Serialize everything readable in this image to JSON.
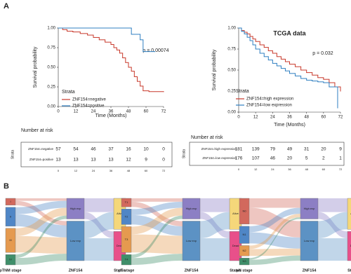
{
  "panel_labels": [
    "A",
    "B"
  ],
  "chart_data": [
    {
      "type": "km",
      "annotation": "p = 0.00074",
      "x_label": "Time (Months)",
      "y_label": "Survival probability",
      "legend_title": "Strata",
      "xlim": [
        0,
        72
      ],
      "ylim": [
        0,
        1
      ],
      "xticks": [
        0,
        12,
        24,
        36,
        48,
        60,
        72
      ],
      "yticks": [
        {
          "value": 0,
          "label": "0.00"
        },
        {
          "value": 0.25,
          "label": "0.25"
        },
        {
          "value": 0.5,
          "label": "0.50"
        },
        {
          "value": 0.75,
          "label": "0.75"
        },
        {
          "value": 1,
          "label": "1.00"
        }
      ],
      "series": [
        {
          "name": "ZNF154=negative",
          "color": "#c8392b",
          "x": [
            0,
            3,
            6,
            10,
            15,
            20,
            24,
            28,
            32,
            36,
            38,
            40,
            42,
            44,
            46,
            48,
            50,
            52,
            54,
            56,
            58,
            62,
            72
          ],
          "values": [
            1,
            0.98,
            0.96,
            0.95,
            0.93,
            0.91,
            0.88,
            0.85,
            0.82,
            0.79,
            0.75,
            0.72,
            0.68,
            0.62,
            0.56,
            0.5,
            0.45,
            0.38,
            0.32,
            0.26,
            0.2,
            0.19,
            0.19
          ]
        },
        {
          "name": "ZNF154=positive",
          "color": "#2f7fc1",
          "x": [
            0,
            50,
            56,
            58,
            66
          ],
          "values": [
            1,
            0.92,
            0.85,
            0.7,
            0.7
          ]
        }
      ],
      "risk_table": {
        "title": "Number at risk",
        "y_label": "Strata",
        "counts": [
          [
            57,
            54,
            46,
            37,
            16,
            10,
            0
          ],
          [
            13,
            13,
            13,
            13,
            12,
            9,
            0
          ]
        ]
      }
    },
    {
      "type": "km",
      "title": "TCGA data",
      "annotation": "p = 0.032",
      "x_label": "Time (Months)",
      "y_label": "Survival probability",
      "legend_title": "Strata",
      "xlim": [
        0,
        72
      ],
      "ylim": [
        0,
        1
      ],
      "xticks": [
        0,
        12,
        24,
        36,
        48,
        60,
        72
      ],
      "yticks": [
        {
          "value": 0,
          "label": "0.00"
        },
        {
          "value": 0.25,
          "label": "0.25"
        },
        {
          "value": 0.5,
          "label": "0.50"
        },
        {
          "value": 0.75,
          "label": "0.75"
        },
        {
          "value": 1,
          "label": "1.00"
        }
      ],
      "series": [
        {
          "name": "ZNF154=high expression",
          "color": "#c8392b",
          "x": [
            0,
            2,
            4,
            6,
            8,
            10,
            12,
            15,
            18,
            21,
            24,
            27,
            30,
            33,
            36,
            40,
            44,
            48,
            52,
            56,
            60,
            64,
            68,
            72
          ],
          "values": [
            1,
            0.97,
            0.95,
            0.93,
            0.9,
            0.87,
            0.84,
            0.8,
            0.77,
            0.73,
            0.7,
            0.66,
            0.63,
            0.6,
            0.57,
            0.54,
            0.5,
            0.47,
            0.44,
            0.41,
            0.39,
            0.35,
            0.3,
            0.25
          ]
        },
        {
          "name": "ZNF154=low  expression",
          "color": "#2f7fc1",
          "x": [
            0,
            2,
            4,
            6,
            8,
            10,
            12,
            15,
            18,
            21,
            24,
            27,
            30,
            33,
            36,
            40,
            44,
            48,
            52,
            56,
            60,
            64,
            68,
            70
          ],
          "values": [
            1,
            0.96,
            0.93,
            0.89,
            0.85,
            0.8,
            0.75,
            0.7,
            0.66,
            0.62,
            0.58,
            0.55,
            0.52,
            0.49,
            0.46,
            0.43,
            0.4,
            0.38,
            0.37,
            0.36,
            0.35,
            0.3,
            0.3,
            0.05
          ]
        }
      ],
      "risk_table": {
        "title": "Number at risk",
        "y_label": "Strata",
        "counts": [
          [
            181,
            139,
            79,
            49,
            31,
            20,
            9
          ],
          [
            176,
            107,
            46,
            20,
            5,
            2,
            1
          ]
        ]
      }
    },
    {
      "type": "sankey",
      "columns": [
        {
          "label": "pTNM stage",
          "nodes": [
            {
              "name": "I",
              "value": 8,
              "color": "#d2695d"
            },
            {
              "name": "II",
              "value": 22,
              "color": "#4f86c6"
            },
            {
              "name": "III",
              "value": 28,
              "color": "#e59a4f"
            },
            {
              "name": "IV",
              "value": 12,
              "color": "#3f8f6a"
            }
          ]
        },
        {
          "label": "ZNF154",
          "nodes": [
            {
              "name": "High exp",
              "value": 24,
              "color": "#8c7fc4"
            },
            {
              "name": "Low exp",
              "value": 46,
              "color": "#5c92c4"
            }
          ]
        },
        {
          "label": "Status",
          "nodes": [
            {
              "name": "Alive",
              "value": 36,
              "color": "#f5d77a"
            },
            {
              "name": "Dead",
              "value": 34,
              "color": "#e8508a"
            }
          ]
        }
      ],
      "links": [
        {
          "source": "I",
          "target": "High exp",
          "value": 3
        },
        {
          "source": "I",
          "target": "Low exp",
          "value": 5
        },
        {
          "source": "II",
          "target": "High exp",
          "value": 8
        },
        {
          "source": "II",
          "target": "Low exp",
          "value": 14
        },
        {
          "source": "III",
          "target": "High exp",
          "value": 9
        },
        {
          "source": "III",
          "target": "Low exp",
          "value": 19
        },
        {
          "source": "IV",
          "target": "High exp",
          "value": 4
        },
        {
          "source": "IV",
          "target": "Low exp",
          "value": 8
        },
        {
          "source": "High exp",
          "target": "Alive",
          "value": 16
        },
        {
          "source": "High exp",
          "target": "Dead",
          "value": 8
        },
        {
          "source": "Low exp",
          "target": "Alive",
          "value": 20
        },
        {
          "source": "Low exp",
          "target": "Dead",
          "value": 26
        }
      ]
    },
    {
      "type": "sankey",
      "columns": [
        {
          "label": "pT stage",
          "nodes": [
            {
              "name": "T1",
              "value": 10,
              "color": "#d2695d"
            },
            {
              "name": "T2",
              "value": 18,
              "color": "#4f86c6"
            },
            {
              "name": "T3",
              "value": 30,
              "color": "#e59a4f"
            },
            {
              "name": "T4",
              "value": 12,
              "color": "#3f8f6a"
            }
          ]
        },
        {
          "label": "ZNF154",
          "nodes": [
            {
              "name": "High exp",
              "value": 24,
              "color": "#8c7fc4"
            },
            {
              "name": "Low exp",
              "value": 46,
              "color": "#5c92c4"
            }
          ]
        },
        {
          "label": "Status",
          "nodes": [
            {
              "name": "Alive",
              "value": 36,
              "color": "#f5d77a"
            },
            {
              "name": "Dead",
              "value": 34,
              "color": "#e8508a"
            }
          ]
        }
      ],
      "links": [
        {
          "source": "T1",
          "target": "High exp",
          "value": 4
        },
        {
          "source": "T1",
          "target": "Low exp",
          "value": 6
        },
        {
          "source": "T2",
          "target": "High exp",
          "value": 7
        },
        {
          "source": "T2",
          "target": "Low exp",
          "value": 11
        },
        {
          "source": "T3",
          "target": "High exp",
          "value": 9
        },
        {
          "source": "T3",
          "target": "Low exp",
          "value": 21
        },
        {
          "source": "T4",
          "target": "High exp",
          "value": 4
        },
        {
          "source": "T4",
          "target": "Low exp",
          "value": 8
        },
        {
          "source": "High exp",
          "target": "Alive",
          "value": 16
        },
        {
          "source": "High exp",
          "target": "Dead",
          "value": 8
        },
        {
          "source": "Low exp",
          "target": "Alive",
          "value": 20
        },
        {
          "source": "Low exp",
          "target": "Dead",
          "value": 26
        }
      ]
    },
    {
      "type": "sankey",
      "columns": [
        {
          "label": "pN stage",
          "nodes": [
            {
              "name": "N0",
              "value": 30,
              "color": "#d2695d"
            },
            {
              "name": "N1",
              "value": 20,
              "color": "#4f86c6"
            },
            {
              "name": "N2",
              "value": 12,
              "color": "#e59a4f"
            },
            {
              "name": "N3",
              "value": 8,
              "color": "#3f8f6a"
            }
          ]
        },
        {
          "label": "ZNF154",
          "nodes": [
            {
              "name": "High exp",
              "value": 24,
              "color": "#8c7fc4"
            },
            {
              "name": "Low exp",
              "value": 46,
              "color": "#5c92c4"
            }
          ]
        },
        {
          "label": "Status",
          "nodes": [
            {
              "name": "Alive",
              "value": 36,
              "color": "#f5d77a"
            },
            {
              "name": "Dead",
              "value": 34,
              "color": "#e8508a"
            }
          ]
        }
      ],
      "links": [
        {
          "source": "N0",
          "target": "High exp",
          "value": 11
        },
        {
          "source": "N0",
          "target": "Low exp",
          "value": 19
        },
        {
          "source": "N1",
          "target": "High exp",
          "value": 7
        },
        {
          "source": "N1",
          "target": "Low exp",
          "value": 13
        },
        {
          "source": "N2",
          "target": "High exp",
          "value": 4
        },
        {
          "source": "N2",
          "target": "Low exp",
          "value": 8
        },
        {
          "source": "N3",
          "target": "High exp",
          "value": 2
        },
        {
          "source": "N3",
          "target": "Low exp",
          "value": 6
        },
        {
          "source": "High exp",
          "target": "Alive",
          "value": 16
        },
        {
          "source": "High exp",
          "target": "Dead",
          "value": 8
        },
        {
          "source": "Low exp",
          "target": "Alive",
          "value": 20
        },
        {
          "source": "Low exp",
          "target": "Dead",
          "value": 26
        }
      ]
    }
  ]
}
